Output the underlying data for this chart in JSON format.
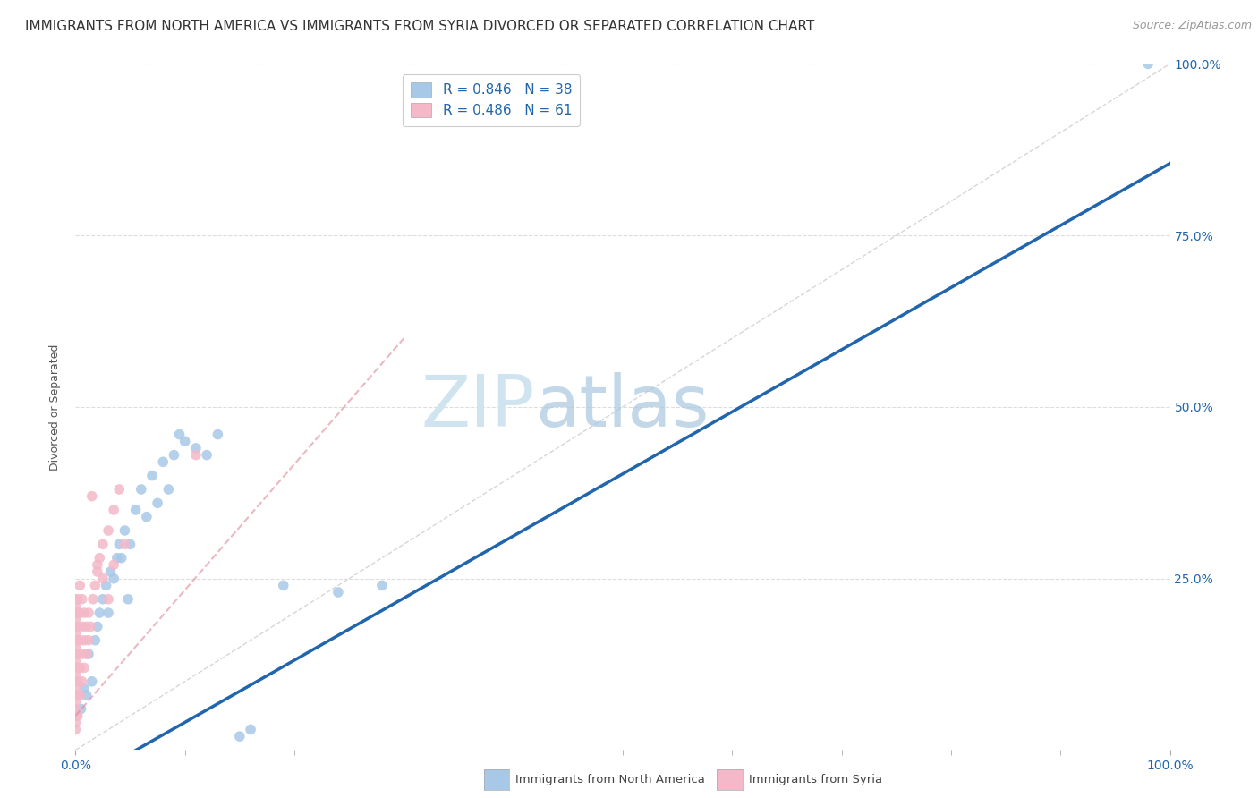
{
  "title": "IMMIGRANTS FROM NORTH AMERICA VS IMMIGRANTS FROM SYRIA DIVORCED OR SEPARATED CORRELATION CHART",
  "source": "Source: ZipAtlas.com",
  "ylabel": "Divorced or Separated",
  "legend_label_blue": "Immigrants from North America",
  "legend_label_pink": "Immigrants from Syria",
  "r_blue": "0.846",
  "n_blue": "38",
  "r_pink": "0.486",
  "n_pink": "61",
  "blue_color": "#a8c8e8",
  "pink_color": "#f4b8c8",
  "blue_line_color": "#2166ac",
  "pink_line_color": "#e08898",
  "ref_line_color": "#cccccc",
  "background_color": "#ffffff",
  "blue_points": [
    [
      0.005,
      0.06
    ],
    [
      0.008,
      0.09
    ],
    [
      0.01,
      0.08
    ],
    [
      0.012,
      0.14
    ],
    [
      0.015,
      0.1
    ],
    [
      0.018,
      0.16
    ],
    [
      0.02,
      0.18
    ],
    [
      0.022,
      0.2
    ],
    [
      0.025,
      0.22
    ],
    [
      0.028,
      0.24
    ],
    [
      0.03,
      0.2
    ],
    [
      0.032,
      0.26
    ],
    [
      0.035,
      0.25
    ],
    [
      0.038,
      0.28
    ],
    [
      0.04,
      0.3
    ],
    [
      0.042,
      0.28
    ],
    [
      0.045,
      0.32
    ],
    [
      0.048,
      0.22
    ],
    [
      0.05,
      0.3
    ],
    [
      0.055,
      0.35
    ],
    [
      0.06,
      0.38
    ],
    [
      0.065,
      0.34
    ],
    [
      0.07,
      0.4
    ],
    [
      0.075,
      0.36
    ],
    [
      0.08,
      0.42
    ],
    [
      0.085,
      0.38
    ],
    [
      0.09,
      0.43
    ],
    [
      0.095,
      0.46
    ],
    [
      0.1,
      0.45
    ],
    [
      0.11,
      0.44
    ],
    [
      0.12,
      0.43
    ],
    [
      0.13,
      0.46
    ],
    [
      0.15,
      0.02
    ],
    [
      0.16,
      0.03
    ],
    [
      0.19,
      0.24
    ],
    [
      0.24,
      0.23
    ],
    [
      0.28,
      0.24
    ],
    [
      0.98,
      1.0
    ]
  ],
  "pink_points": [
    [
      0.0,
      0.03
    ],
    [
      0.0,
      0.04
    ],
    [
      0.0,
      0.05
    ],
    [
      0.0,
      0.06
    ],
    [
      0.0,
      0.07
    ],
    [
      0.0,
      0.08
    ],
    [
      0.0,
      0.09
    ],
    [
      0.0,
      0.1
    ],
    [
      0.0,
      0.11
    ],
    [
      0.0,
      0.12
    ],
    [
      0.0,
      0.13
    ],
    [
      0.0,
      0.14
    ],
    [
      0.0,
      0.15
    ],
    [
      0.0,
      0.16
    ],
    [
      0.0,
      0.17
    ],
    [
      0.0,
      0.18
    ],
    [
      0.0,
      0.19
    ],
    [
      0.0,
      0.2
    ],
    [
      0.0,
      0.21
    ],
    [
      0.0,
      0.22
    ],
    [
      0.002,
      0.05
    ],
    [
      0.002,
      0.08
    ],
    [
      0.002,
      0.1
    ],
    [
      0.002,
      0.12
    ],
    [
      0.002,
      0.14
    ],
    [
      0.002,
      0.16
    ],
    [
      0.002,
      0.18
    ],
    [
      0.002,
      0.2
    ],
    [
      0.002,
      0.22
    ],
    [
      0.004,
      0.08
    ],
    [
      0.004,
      0.12
    ],
    [
      0.004,
      0.16
    ],
    [
      0.004,
      0.2
    ],
    [
      0.004,
      0.24
    ],
    [
      0.006,
      0.1
    ],
    [
      0.006,
      0.14
    ],
    [
      0.006,
      0.18
    ],
    [
      0.006,
      0.22
    ],
    [
      0.008,
      0.12
    ],
    [
      0.008,
      0.16
    ],
    [
      0.008,
      0.2
    ],
    [
      0.01,
      0.14
    ],
    [
      0.01,
      0.18
    ],
    [
      0.012,
      0.16
    ],
    [
      0.012,
      0.2
    ],
    [
      0.014,
      0.18
    ],
    [
      0.016,
      0.22
    ],
    [
      0.018,
      0.24
    ],
    [
      0.02,
      0.26
    ],
    [
      0.022,
      0.28
    ],
    [
      0.025,
      0.3
    ],
    [
      0.03,
      0.32
    ],
    [
      0.035,
      0.35
    ],
    [
      0.04,
      0.38
    ],
    [
      0.015,
      0.37
    ],
    [
      0.02,
      0.27
    ],
    [
      0.025,
      0.25
    ],
    [
      0.03,
      0.22
    ],
    [
      0.035,
      0.27
    ],
    [
      0.045,
      0.3
    ],
    [
      0.11,
      0.43
    ]
  ],
  "xlim": [
    0.0,
    1.0
  ],
  "ylim": [
    0.0,
    1.0
  ],
  "blue_line": [
    -0.05,
    0.855
  ],
  "pink_line": [
    0.05,
    0.6
  ],
  "ref_line": [
    0.0,
    1.0
  ],
  "ytick_positions": [
    0.25,
    0.5,
    0.75,
    1.0
  ],
  "ytick_labels": [
    "25.0%",
    "50.0%",
    "75.0%",
    "100.0%"
  ],
  "grid_color": "#dddddd",
  "title_fontsize": 11,
  "axis_fontsize": 10,
  "legend_fontsize": 11,
  "marker_size": 70,
  "watermark_color": "#d0e4f0"
}
